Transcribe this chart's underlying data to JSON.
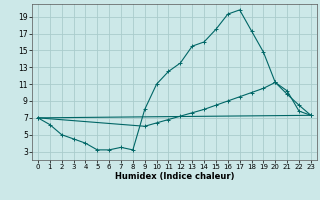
{
  "background_color": "#cce8e8",
  "grid_color": "#aacccc",
  "line_color": "#006666",
  "xlabel": "Humidex (Indice chaleur)",
  "xlim": [
    -0.5,
    23.5
  ],
  "ylim": [
    2.0,
    20.5
  ],
  "yticks": [
    3,
    5,
    7,
    9,
    11,
    13,
    15,
    17,
    19
  ],
  "xticks": [
    0,
    1,
    2,
    3,
    4,
    5,
    6,
    7,
    8,
    9,
    10,
    11,
    12,
    13,
    14,
    15,
    16,
    17,
    18,
    19,
    20,
    21,
    22,
    23
  ],
  "curve1_x": [
    0,
    1,
    2,
    3,
    4,
    5,
    6,
    7,
    8,
    9,
    10,
    11,
    12,
    13,
    14,
    15,
    16,
    17,
    18,
    19,
    20,
    21,
    22,
    23
  ],
  "curve1_y": [
    7.0,
    6.2,
    5.0,
    4.5,
    4.0,
    3.2,
    3.2,
    3.5,
    3.2,
    8.0,
    11.0,
    12.5,
    13.5,
    15.5,
    16.0,
    17.5,
    19.3,
    19.8,
    17.3,
    14.8,
    11.2,
    10.2,
    7.8,
    7.3
  ],
  "curve2_x": [
    0,
    9,
    10,
    11,
    12,
    13,
    14,
    15,
    16,
    17,
    18,
    19,
    20,
    21,
    22,
    23
  ],
  "curve2_y": [
    7.0,
    6.0,
    6.4,
    6.8,
    7.2,
    7.6,
    8.0,
    8.5,
    9.0,
    9.5,
    10.0,
    10.5,
    11.2,
    9.8,
    8.5,
    7.3
  ],
  "curve3_x": [
    0,
    23
  ],
  "curve3_y": [
    7.0,
    7.3
  ]
}
